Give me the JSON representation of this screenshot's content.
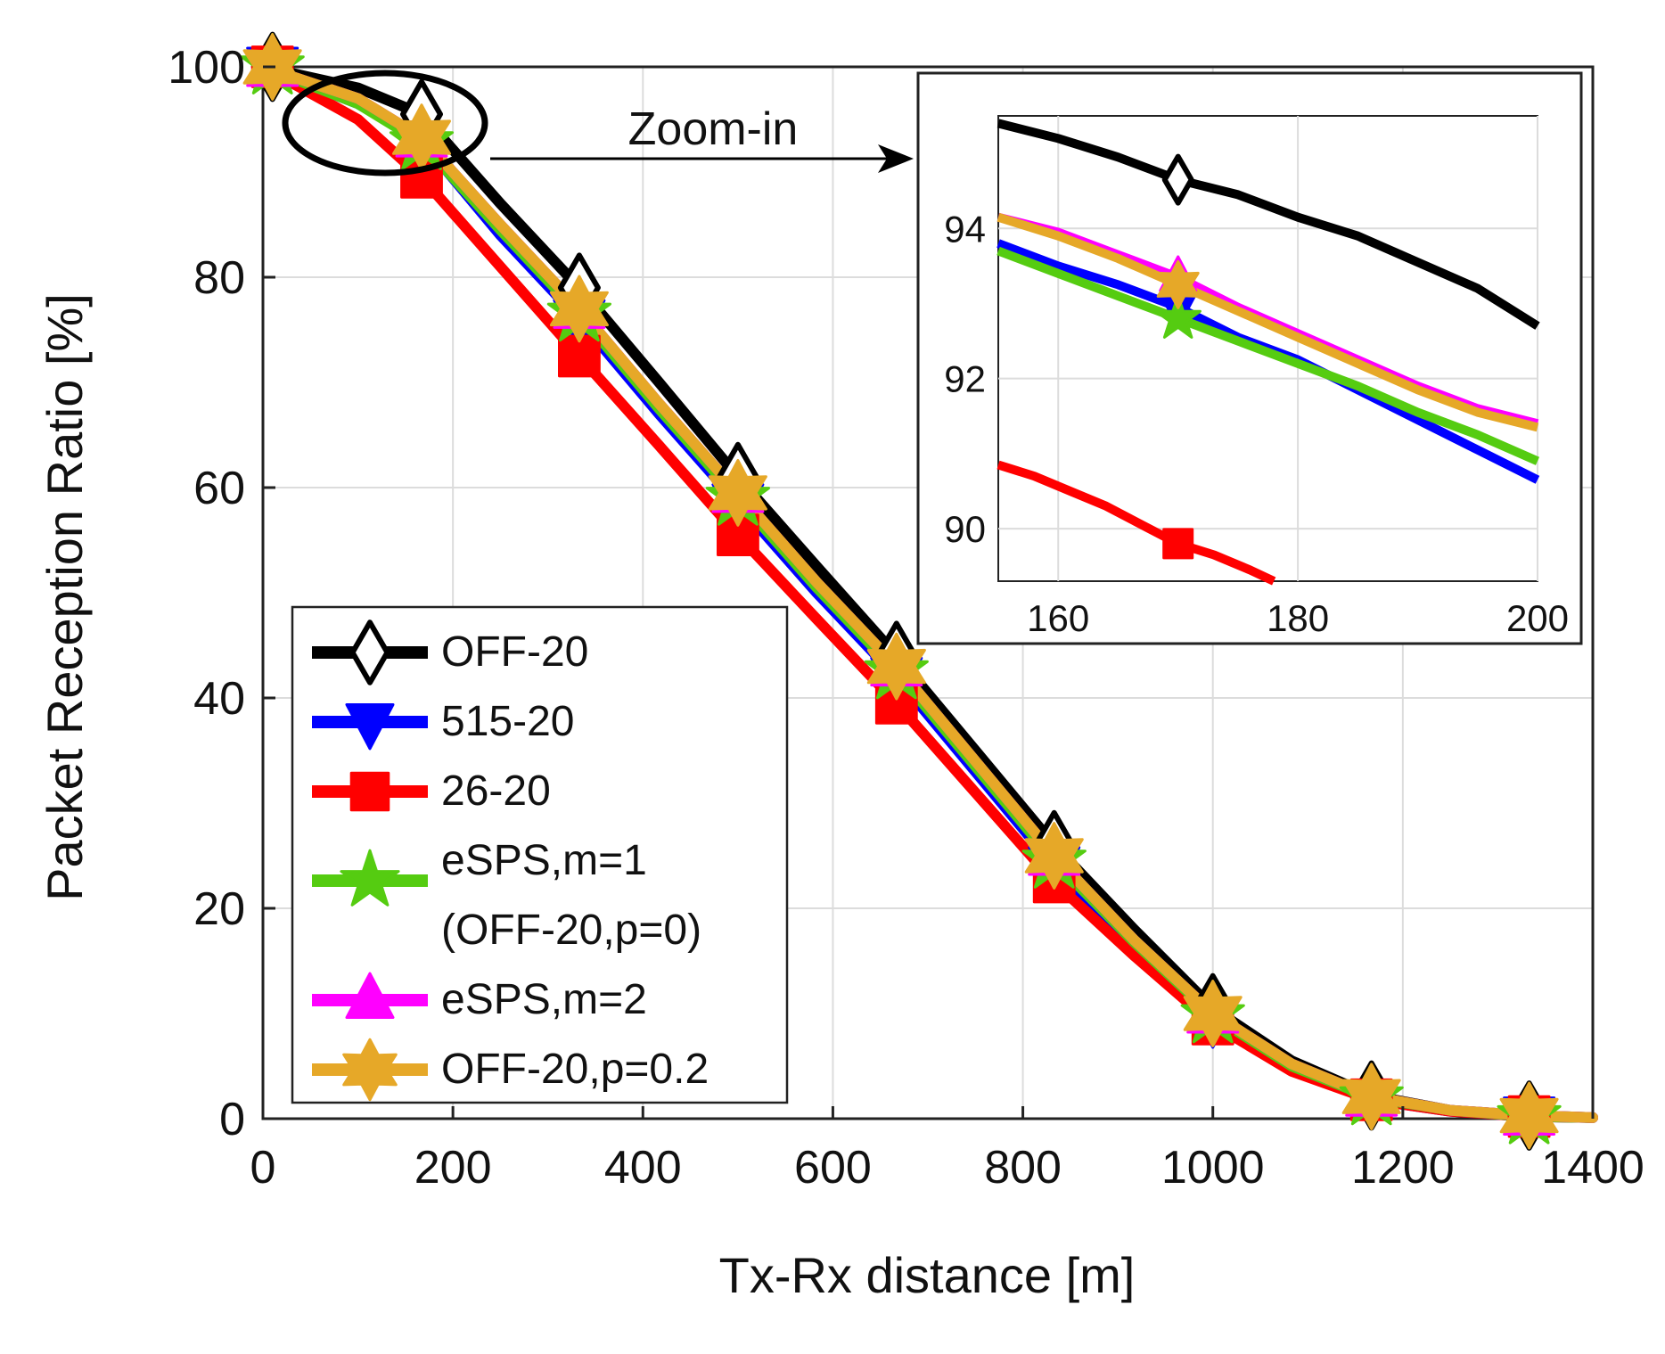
{
  "chart_data": {
    "type": "line",
    "xlabel": "Tx-Rx distance [m]",
    "ylabel": "Packet Reception Ratio [%]",
    "xlim": [
      0,
      1400
    ],
    "ylim": [
      0,
      100
    ],
    "xticks": [
      0,
      200,
      400,
      600,
      800,
      1000,
      1200,
      1400
    ],
    "yticks": [
      0,
      20,
      40,
      60,
      80,
      100
    ],
    "grid": true,
    "legend_position": "bottom-left",
    "annotation": "Zoom-in",
    "series": [
      {
        "name": "OFF-20",
        "color": "#000000",
        "marker": "diamond",
        "x": [
          0,
          100,
          167,
          250,
          333,
          417,
          500,
          583,
          667,
          750,
          833,
          917,
          1000,
          1083,
          1167,
          1250,
          1333,
          1400
        ],
        "y": [
          100,
          98,
          95.5,
          87,
          79,
          70,
          61,
          52.5,
          44,
          35,
          26,
          18,
          10.5,
          5.5,
          2.2,
          0.8,
          0.3,
          0.1
        ]
      },
      {
        "name": "515-20",
        "color": "#0000ff",
        "marker": "triangle-down",
        "x": [
          0,
          100,
          167,
          250,
          333,
          417,
          500,
          583,
          667,
          750,
          833,
          917,
          1000,
          1083,
          1167,
          1250,
          1333,
          1400
        ],
        "y": [
          100,
          96.5,
          93,
          84,
          76,
          67,
          58.5,
          50,
          42,
          33,
          24,
          16.5,
          9.5,
          4.8,
          1.8,
          0.7,
          0.2,
          0.1
        ]
      },
      {
        "name": "26-20",
        "color": "#ff0000",
        "marker": "square",
        "x": [
          0,
          100,
          167,
          250,
          333,
          417,
          500,
          583,
          667,
          750,
          833,
          917,
          1000,
          1083,
          1167,
          1250,
          1333,
          1400
        ],
        "y": [
          100,
          95,
          89.5,
          81,
          72.5,
          64,
          55.5,
          47.5,
          39.5,
          31,
          22.5,
          15.5,
          9,
          4.5,
          1.8,
          0.7,
          0.2,
          0.1
        ]
      },
      {
        "name": "eSPS,m=1\n(OFF-20,p=0)",
        "color": "#55cc11",
        "marker": "star",
        "x": [
          0,
          100,
          167,
          250,
          333,
          417,
          500,
          583,
          667,
          750,
          833,
          917,
          1000,
          1083,
          1167,
          1250,
          1333,
          1400
        ],
        "y": [
          100,
          96.5,
          92.8,
          84.5,
          76.5,
          67.5,
          59,
          50.5,
          42.5,
          33.5,
          24.5,
          16.8,
          9.8,
          5,
          2,
          0.8,
          0.2,
          0.1
        ]
      },
      {
        "name": "eSPS,m=2",
        "color": "#ff00ff",
        "marker": "triangle-up",
        "x": [
          0,
          100,
          167,
          250,
          333,
          417,
          500,
          583,
          667,
          750,
          833,
          917,
          1000,
          1083,
          1167,
          1250,
          1333,
          1400
        ],
        "y": [
          100,
          97,
          93.3,
          85,
          77,
          68,
          59.5,
          51,
          43,
          34,
          25,
          17,
          10,
          5.2,
          2.1,
          0.8,
          0.3,
          0.1
        ]
      },
      {
        "name": "OFF-20,p=0.2",
        "color": "#e6a828",
        "marker": "hexagram",
        "x": [
          0,
          100,
          167,
          250,
          333,
          417,
          500,
          583,
          667,
          750,
          833,
          917,
          1000,
          1083,
          1167,
          1250,
          1333,
          1400
        ],
        "y": [
          100,
          97,
          93.3,
          85,
          77,
          68,
          59.5,
          51,
          43,
          34,
          25,
          17,
          10,
          5.2,
          2.1,
          0.8,
          0.3,
          0.1
        ]
      }
    ],
    "legend_lines": [
      "OFF-20",
      "515-20",
      "26-20",
      "eSPS,m=1",
      "(OFF-20,p=0)",
      "eSPS,m=2",
      "OFF-20,p=0.2"
    ],
    "inset": {
      "xlim": [
        155,
        200
      ],
      "ylim": [
        89.3,
        95.5
      ],
      "xticks": [
        160,
        180,
        200
      ],
      "yticks": [
        90,
        92,
        94
      ],
      "grid": true,
      "marker_x": 170,
      "series": [
        {
          "name": "OFF-20",
          "x": [
            155,
            160,
            165,
            170,
            175,
            180,
            185,
            190,
            195,
            200
          ],
          "y": [
            95.4,
            95.2,
            94.95,
            94.65,
            94.45,
            94.15,
            93.9,
            93.55,
            93.2,
            92.7
          ]
        },
        {
          "name": "515-20",
          "x": [
            155,
            160,
            165,
            170,
            175,
            180,
            185,
            190,
            195,
            200
          ],
          "y": [
            93.8,
            93.5,
            93.25,
            92.95,
            92.55,
            92.25,
            91.85,
            91.45,
            91.05,
            90.65
          ]
        },
        {
          "name": "26-20",
          "x": [
            155,
            158,
            161,
            164,
            167,
            170,
            173,
            176,
            178
          ],
          "y": [
            90.85,
            90.7,
            90.5,
            90.3,
            90.05,
            89.8,
            89.65,
            89.45,
            89.3
          ]
        },
        {
          "name": "eSPS,m=1\n(OFF-20,p=0)",
          "x": [
            155,
            160,
            165,
            170,
            175,
            180,
            185,
            190,
            195,
            200
          ],
          "y": [
            93.7,
            93.4,
            93.1,
            92.8,
            92.5,
            92.2,
            91.9,
            91.55,
            91.25,
            90.9
          ]
        },
        {
          "name": "eSPS,m=2",
          "x": [
            155,
            160,
            165,
            170,
            175,
            180,
            185,
            190,
            195,
            200
          ],
          "y": [
            94.15,
            93.95,
            93.65,
            93.35,
            92.95,
            92.6,
            92.25,
            91.9,
            91.6,
            91.4
          ]
        },
        {
          "name": "OFF-20,p=0.2",
          "x": [
            155,
            160,
            165,
            170,
            175,
            180,
            185,
            190,
            195,
            200
          ],
          "y": [
            94.15,
            93.9,
            93.6,
            93.25,
            92.9,
            92.55,
            92.2,
            91.85,
            91.55,
            91.35
          ]
        }
      ]
    }
  }
}
